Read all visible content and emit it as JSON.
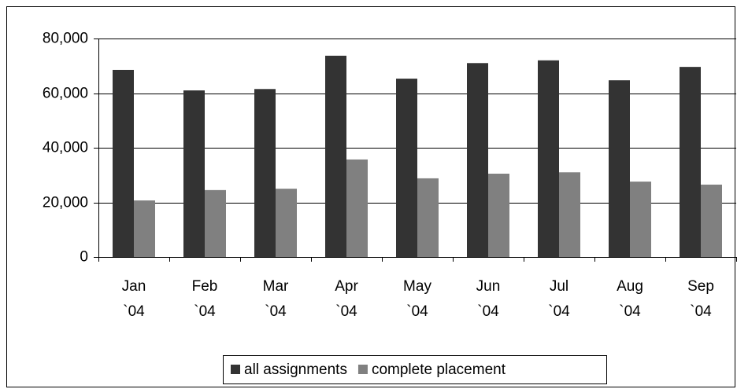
{
  "chart_data": {
    "type": "bar",
    "categories": [
      "Jan `04",
      "Feb `04",
      "Mar `04",
      "Apr `04",
      "May `04",
      "Jun `04",
      "Jul `04",
      "Aug `04",
      "Sep `04"
    ],
    "series": [
      {
        "name": "all assignments",
        "color": "#333333",
        "values": [
          68500,
          61000,
          61500,
          73700,
          65300,
          71000,
          72000,
          64700,
          69600
        ]
      },
      {
        "name": "complete placement",
        "color": "#808080",
        "values": [
          20700,
          24500,
          25000,
          35700,
          28800,
          30500,
          31000,
          27600,
          26500
        ]
      }
    ],
    "ylim": [
      0,
      80000
    ],
    "yticks": [
      0,
      {
        "value": 20000,
        "label": "20,000"
      },
      {
        "value": 40000,
        "label": "40,000"
      },
      {
        "value": 60000,
        "label": "60,000"
      },
      {
        "value": 80000,
        "label": "80,000"
      }
    ],
    "grid": true
  }
}
